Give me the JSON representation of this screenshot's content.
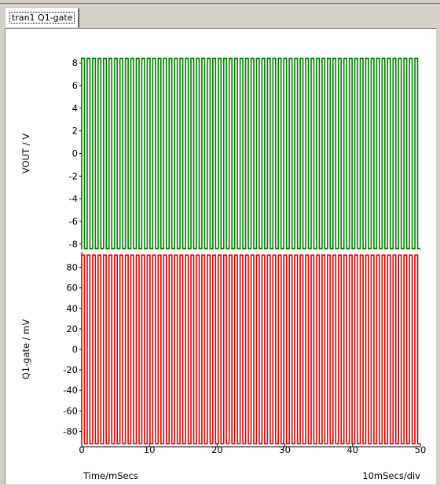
{
  "tab": {
    "label": "tran1 Q1-gate"
  },
  "footer": {
    "xlabel": "Time/mSecs",
    "scale": "10mSecs/div"
  },
  "chart_data": [
    {
      "type": "line",
      "ylabel": "VOUT / V",
      "color": "#008000",
      "ylim": [
        -8.5,
        8.5
      ],
      "yticks": [
        8,
        6,
        4,
        2,
        0,
        -2,
        -4,
        -6,
        -8
      ],
      "xlim": [
        0,
        50
      ],
      "series": [
        {
          "waveform": "square",
          "amplitude": 8.4,
          "cycles": 62,
          "x_start": 0,
          "x_end": 50
        }
      ]
    },
    {
      "type": "line",
      "ylabel": "Q1-gate / mV",
      "color": "#e00000",
      "ylim": [
        -95,
        95
      ],
      "yticks": [
        80,
        60,
        40,
        20,
        0,
        -20,
        -40,
        -60,
        -80
      ],
      "xlim": [
        0,
        50
      ],
      "xticks": [
        0,
        10,
        20,
        30,
        40,
        50
      ],
      "series": [
        {
          "waveform": "square",
          "amplitude": 92,
          "cycles": 62,
          "x_start": 0,
          "x_end": 50
        }
      ]
    }
  ]
}
